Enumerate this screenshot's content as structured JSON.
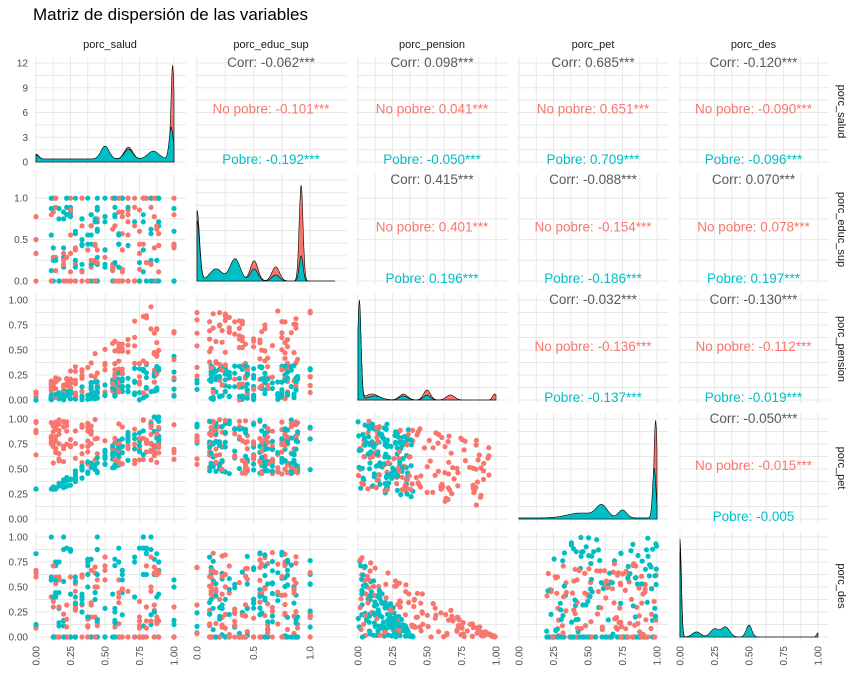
{
  "title": "Matriz de dispersión de las variables",
  "colors": {
    "no_pobre": "#F8766D",
    "pobre": "#00BFC4",
    "overall": "#595959",
    "grid": "#e8e8e8"
  },
  "chart_data": {
    "type": "scatter",
    "variables": [
      "porc_salud",
      "porc_educ_sup",
      "porc_pension",
      "porc_pet",
      "porc_des"
    ],
    "groups": [
      "No pobre",
      "Pobre"
    ],
    "diag_y_ticks": [
      "0",
      "3",
      "6",
      "9",
      "12"
    ],
    "y_ticks_standard": [
      "0.00",
      "0.25",
      "0.50",
      "0.75",
      "1.00"
    ],
    "y_ticks_educ": [
      "0.0",
      "0.5",
      "1.0"
    ],
    "x_ticks_standard": [
      "0.00",
      "0.25",
      "0.50",
      "0.75",
      "1.00"
    ],
    "x_ticks_educ": [
      "0.0",
      "0.5",
      "1.0"
    ],
    "correlations": [
      {
        "row": 0,
        "col": 1,
        "lines": [
          "Corr: -0.062***",
          "No pobre: -0.101***",
          "Pobre: -0.192***"
        ]
      },
      {
        "row": 0,
        "col": 2,
        "lines": [
          "Corr: 0.098***",
          "No pobre: 0.041***",
          "Pobre: -0.050***"
        ]
      },
      {
        "row": 0,
        "col": 3,
        "lines": [
          "Corr: 0.685***",
          "No pobre: 0.651***",
          "Pobre: 0.709***"
        ]
      },
      {
        "row": 0,
        "col": 4,
        "lines": [
          "Corr: -0.120***",
          "No pobre: -0.090***",
          "Pobre: -0.096***"
        ]
      },
      {
        "row": 1,
        "col": 2,
        "lines": [
          "Corr: 0.415***",
          "No pobre: 0.401***",
          "Pobre: 0.196***"
        ]
      },
      {
        "row": 1,
        "col": 3,
        "lines": [
          "Corr: -0.088***",
          "No pobre: -0.154***",
          "Pobre: -0.186***"
        ]
      },
      {
        "row": 1,
        "col": 4,
        "lines": [
          "Corr: 0.070***",
          "No pobre: 0.078***",
          "Pobre: 0.197***"
        ]
      },
      {
        "row": 2,
        "col": 3,
        "lines": [
          "Corr: -0.032***",
          "No pobre: -0.136***",
          "Pobre: -0.137***"
        ]
      },
      {
        "row": 2,
        "col": 4,
        "lines": [
          "Corr: -0.130***",
          "No pobre: -0.112***",
          "Pobre: -0.019***"
        ]
      },
      {
        "row": 3,
        "col": 4,
        "lines": [
          "Corr: -0.050***",
          "No pobre: -0.015***",
          "Pobre: -0.005"
        ]
      }
    ]
  }
}
